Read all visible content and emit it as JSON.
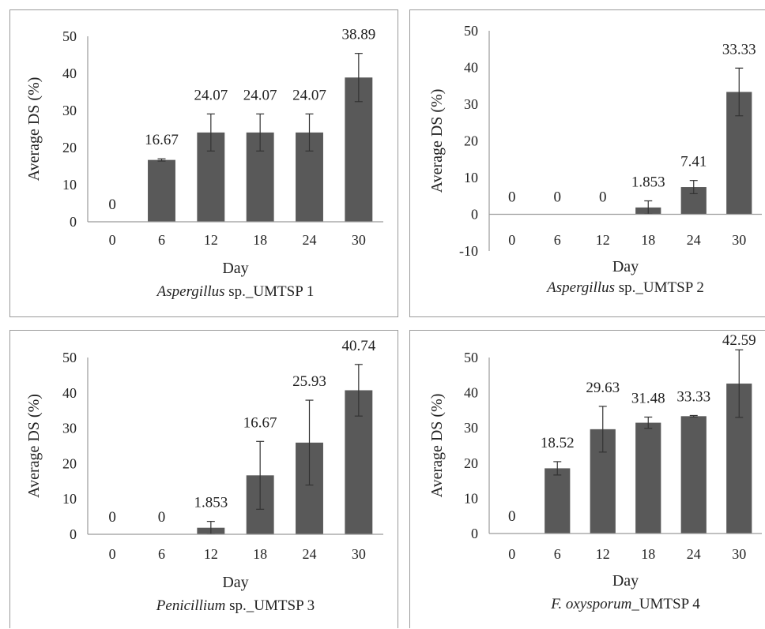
{
  "chart_data": [
    {
      "type": "bar",
      "title_italic": "Aspergillus",
      "title_rest": " sp._UMTSP 1",
      "xlabel": "Day",
      "ylabel": "Average DS (%)",
      "categories": [
        "0",
        "6",
        "12",
        "18",
        "24",
        "30"
      ],
      "values": [
        0,
        16.67,
        24.07,
        24.07,
        24.07,
        38.89
      ],
      "value_labels": [
        "0",
        "16.67",
        "24.07",
        "24.07",
        "24.07",
        "38.89"
      ],
      "errors": [
        0,
        0.3,
        5,
        5,
        5,
        6.5
      ],
      "yticks": [
        "0",
        "10",
        "20",
        "30",
        "40",
        "50"
      ],
      "ylim": [
        0,
        50
      ],
      "bar_color": "#595959"
    },
    {
      "type": "bar",
      "title_italic": "Aspergillus",
      "title_rest": " sp._UMTSP 2",
      "xlabel": "Day",
      "ylabel": "Average DS (%)",
      "categories": [
        "0",
        "6",
        "12",
        "18",
        "24",
        "30"
      ],
      "values": [
        0,
        0,
        0,
        1.853,
        7.41,
        33.33
      ],
      "value_labels": [
        "0",
        "0",
        "0",
        "1.853",
        "7.41",
        "33.33"
      ],
      "errors": [
        0,
        0,
        0,
        1.8,
        1.8,
        6.5
      ],
      "yticks": [
        "-10",
        "0",
        "10",
        "20",
        "30",
        "40",
        "50"
      ],
      "ylim": [
        -10,
        50
      ],
      "bar_color": "#595959"
    },
    {
      "type": "bar",
      "title_italic": "Penicillium",
      "title_rest": " sp._UMTSP 3",
      "xlabel": "Day",
      "ylabel": "Average DS (%)",
      "categories": [
        "0",
        "6",
        "12",
        "18",
        "24",
        "30"
      ],
      "values": [
        0,
        0,
        1.853,
        16.67,
        25.93,
        40.74
      ],
      "value_labels": [
        "0",
        "0",
        "1.853",
        "16.67",
        "25.93",
        "40.74"
      ],
      "errors": [
        0,
        0,
        1.8,
        9.6,
        12,
        7.3
      ],
      "yticks": [
        "0",
        "10",
        "20",
        "30",
        "40",
        "50"
      ],
      "ylim": [
        0,
        50
      ],
      "bar_color": "#595959"
    },
    {
      "type": "bar",
      "title_italic": "F. oxysporum",
      "title_rest": "_UMTSP 4",
      "xlabel": "Day",
      "ylabel": "Average DS (%)",
      "categories": [
        "0",
        "6",
        "12",
        "18",
        "24",
        "30"
      ],
      "values": [
        0,
        18.52,
        29.63,
        31.48,
        33.33,
        42.59
      ],
      "value_labels": [
        "0",
        "18.52",
        "29.63",
        "31.48",
        "33.33",
        "42.59"
      ],
      "errors": [
        0,
        1.9,
        6.5,
        1.6,
        0.2,
        9.6
      ],
      "yticks": [
        "0",
        "10",
        "20",
        "30",
        "40",
        "50"
      ],
      "ylim": [
        0,
        50
      ],
      "bar_color": "#595959"
    }
  ]
}
